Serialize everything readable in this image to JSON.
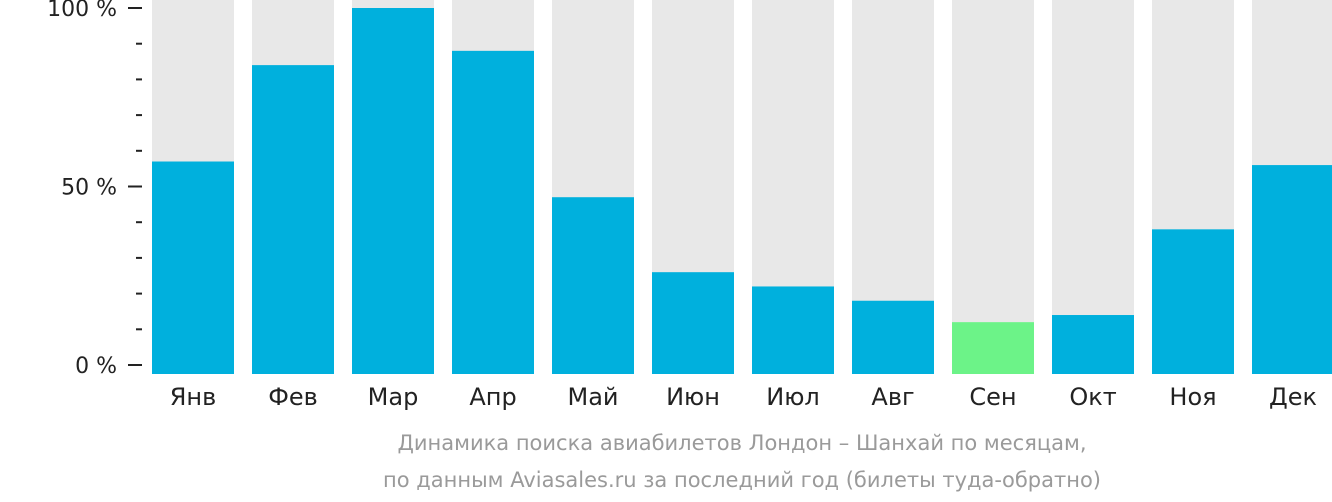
{
  "chart_data": {
    "type": "bar",
    "title": "",
    "xlabel": "",
    "ylabel": "",
    "ylim": [
      0,
      100
    ],
    "y_ticks": [
      {
        "value": 0,
        "label": "0 %"
      },
      {
        "value": 50,
        "label": "50 %"
      },
      {
        "value": 100,
        "label": "100 %"
      }
    ],
    "y_minor_step": 10,
    "categories": [
      "Янв",
      "Фев",
      "Мар",
      "Апр",
      "Май",
      "Июн",
      "Июл",
      "Авг",
      "Сен",
      "Окт",
      "Ноя",
      "Дек"
    ],
    "values": [
      57,
      84,
      100,
      88,
      47,
      26,
      22,
      18,
      12,
      14,
      38,
      56
    ],
    "highlight_index": 8,
    "grid": false,
    "legend": "none"
  },
  "colors": {
    "bar": "#00b0dd",
    "bar_highlight": "#6cf388",
    "track": "#e8e8e8",
    "axis": "#222222",
    "caption": "#9a9a9a"
  },
  "caption": {
    "line1": "Динамика поиска авиабилетов Лондон – Шанхай по месяцам,",
    "line2": "по данным Aviasales.ru за последний год (билеты туда-обратно)"
  }
}
